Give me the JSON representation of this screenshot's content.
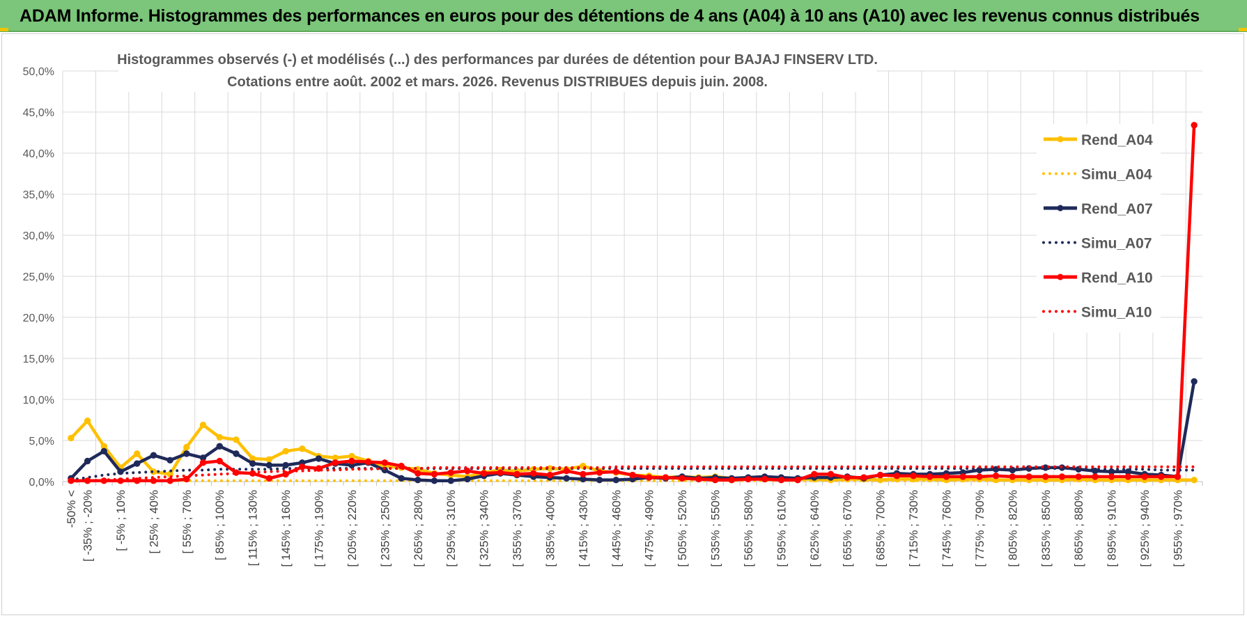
{
  "banner": {
    "title": "ADAM Informe. Histogrammes des performances en euros pour des détentions de 4 ans (A04) à 10 ans (A10) avec les revenus connus distribués",
    "color": "#7bc67a"
  },
  "chart_data": {
    "type": "line",
    "title": "Histogrammes observés (-) et modélisés (...) des performances par durées de détention pour BAJAJ FINSERV  LTD.",
    "subtitle": "Cotations entre août. 2002 et mars. 2026. Revenus DISTRIBUES depuis juin. 2008.",
    "ylim": [
      0,
      50
    ],
    "yticks": [
      "0,0%",
      "5,0%",
      "10,0%",
      "15,0%",
      "20,0%",
      "25,0%",
      "30,0%",
      "35,0%",
      "40,0%",
      "45,0%",
      "50,0%"
    ],
    "grid": true,
    "legend_position": "right",
    "n_categories": 69,
    "x_tick_labels": [
      "-50% <",
      "[ -35% ; -20%",
      "[ -5% ; 10%",
      "[ 25% ; 40%",
      "[ 55% ; 70%",
      "[ 85% ; 100%",
      "[ 115% ; 130%",
      "[ 145% ; 160%",
      "[ 175% ; 190%",
      "[ 205% ; 220%",
      "[ 235% ; 250%",
      "[ 265% ; 280%",
      "[ 295% ; 310%",
      "[ 325% ; 340%",
      "[ 355% ; 370%",
      "[ 385% ; 400%",
      "[ 415% ; 430%",
      "[ 445% ; 460%",
      "[ 475% ; 490%",
      "[ 505% ; 520%",
      "[ 535% ; 550%",
      "[ 565% ; 580%",
      "[ 595% ; 610%",
      "[ 625% ; 640%",
      "[ 655% ; 670%",
      "[ 685% ; 700%",
      "[ 715% ; 730%",
      "[ 745% ; 760%",
      "[ 775% ; 790%",
      "[ 805% ; 820%",
      "[ 835% ; 850%",
      "[ 865% ; 880%",
      "[ 895% ; 910%",
      "[ 925% ; 940%",
      "[ 955% ; 970%"
    ],
    "series": [
      {
        "name": "Rend_A04",
        "style": "solid",
        "marker": true,
        "color": "#ffc000",
        "values": [
          5.3,
          7.4,
          4.3,
          1.7,
          3.4,
          1.2,
          0.9,
          4.2,
          6.9,
          5.4,
          5.1,
          2.8,
          2.7,
          3.7,
          4.0,
          3.1,
          2.9,
          3.1,
          2.5,
          1.9,
          1.7,
          1.5,
          1.0,
          0.8,
          0.6,
          1.1,
          1.4,
          1.3,
          1.5,
          1.6,
          1.5,
          1.9,
          1.3,
          1.1,
          0.8,
          0.7,
          0.5,
          0.6,
          0.5,
          0.6,
          0.4,
          0.4,
          0.5,
          0.3,
          0.3,
          0.3,
          0.2,
          0.3,
          0.3,
          0.2,
          0.3,
          0.3,
          0.3,
          0.2,
          0.3,
          0.3,
          0.2,
          0.2,
          0.2,
          0.2,
          0.2,
          0.3,
          0.2,
          0.2,
          0.2,
          0.2,
          0.2,
          0.2,
          0.2
        ]
      },
      {
        "name": "Simu_A04",
        "style": "dotted",
        "marker": false,
        "color": "#ffc000",
        "values": [
          0.1,
          0.1,
          0.1,
          0.1,
          0.1,
          0.1,
          0.1,
          0.1,
          0.1,
          0.1,
          0.1,
          0.1,
          0.1,
          0.1,
          0.1,
          0.1,
          0.1,
          0.1,
          0.1,
          0.1,
          0.1,
          0.1,
          0.1,
          0.1,
          0.1,
          0.1,
          0.1,
          0.1,
          0.1,
          0.1,
          0.1,
          0.1,
          0.1,
          0.1,
          0.1,
          0.1,
          0.1,
          0.1,
          0.1,
          0.1,
          0.1,
          0.1,
          0.1,
          0.1,
          0.1,
          0.1,
          0.1,
          0.1,
          0.1,
          0.1,
          0.1,
          0.1,
          0.1,
          0.1,
          0.1,
          0.1,
          0.1,
          0.1,
          0.1,
          0.1,
          0.1,
          0.1,
          0.1,
          0.1,
          0.1,
          0.1,
          0.1,
          0.1,
          0.1
        ]
      },
      {
        "name": "Rend_A07",
        "style": "solid",
        "marker": true,
        "color": "#1f2a5a",
        "values": [
          0.4,
          2.5,
          3.7,
          1.2,
          2.2,
          3.2,
          2.6,
          3.4,
          2.9,
          4.3,
          3.4,
          2.2,
          2.0,
          2.0,
          2.3,
          2.8,
          2.2,
          2.0,
          2.3,
          1.4,
          0.4,
          0.2,
          0.1,
          0.1,
          0.3,
          0.7,
          1.0,
          0.8,
          0.6,
          0.5,
          0.4,
          0.3,
          0.2,
          0.2,
          0.3,
          0.5,
          0.4,
          0.6,
          0.4,
          0.5,
          0.4,
          0.5,
          0.6,
          0.5,
          0.4,
          0.5,
          0.5,
          0.6,
          0.4,
          0.8,
          1.0,
          0.9,
          0.9,
          1.0,
          1.1,
          1.4,
          1.5,
          1.4,
          1.6,
          1.7,
          1.7,
          1.5,
          1.3,
          1.2,
          1.2,
          0.9,
          0.8,
          0.6,
          12.2
        ]
      },
      {
        "name": "Simu_A07",
        "style": "dotted",
        "marker": false,
        "color": "#1f2a5a",
        "values": [
          0.2,
          0.5,
          0.8,
          1.0,
          1.1,
          1.2,
          1.3,
          1.4,
          1.4,
          1.5,
          1.5,
          1.5,
          1.5,
          1.6,
          1.6,
          1.6,
          1.6,
          1.6,
          1.6,
          1.6,
          1.6,
          1.6,
          1.6,
          1.6,
          1.6,
          1.6,
          1.6,
          1.6,
          1.6,
          1.6,
          1.6,
          1.6,
          1.6,
          1.6,
          1.6,
          1.6,
          1.6,
          1.6,
          1.6,
          1.6,
          1.6,
          1.6,
          1.6,
          1.6,
          1.6,
          1.6,
          1.6,
          1.6,
          1.6,
          1.6,
          1.6,
          1.6,
          1.6,
          1.6,
          1.6,
          1.6,
          1.6,
          1.6,
          1.6,
          1.6,
          1.6,
          1.6,
          1.5,
          1.5,
          1.5,
          1.5,
          1.4,
          1.4,
          1.4
        ]
      },
      {
        "name": "Rend_A10",
        "style": "solid",
        "marker": true,
        "color": "#ff0000",
        "values": [
          0.1,
          0.1,
          0.1,
          0.1,
          0.1,
          0.1,
          0.1,
          0.3,
          2.3,
          2.5,
          1.1,
          1.0,
          0.4,
          0.9,
          1.8,
          1.6,
          2.3,
          2.5,
          2.4,
          2.3,
          1.9,
          1.0,
          0.9,
          1.1,
          1.3,
          1.0,
          1.1,
          0.9,
          1.0,
          0.8,
          1.3,
          0.9,
          1.1,
          1.2,
          0.8,
          0.5,
          0.5,
          0.4,
          0.3,
          0.2,
          0.2,
          0.3,
          0.3,
          0.2,
          0.2,
          0.9,
          0.9,
          0.5,
          0.5,
          0.8,
          0.7,
          0.7,
          0.6,
          0.6,
          0.6,
          0.6,
          0.7,
          0.6,
          0.6,
          0.6,
          0.6,
          0.6,
          0.6,
          0.6,
          0.6,
          0.6,
          0.6,
          0.6,
          43.4
        ]
      },
      {
        "name": "Simu_A10",
        "style": "dotted",
        "marker": false,
        "color": "#ff0000",
        "values": [
          0.0,
          0.1,
          0.2,
          0.3,
          0.4,
          0.5,
          0.6,
          0.7,
          0.8,
          0.9,
          1.0,
          1.1,
          1.2,
          1.3,
          1.3,
          1.4,
          1.4,
          1.5,
          1.5,
          1.6,
          1.6,
          1.6,
          1.7,
          1.7,
          1.7,
          1.7,
          1.7,
          1.7,
          1.7,
          1.7,
          1.7,
          1.7,
          1.7,
          1.8,
          1.8,
          1.8,
          1.8,
          1.8,
          1.8,
          1.8,
          1.8,
          1.8,
          1.8,
          1.8,
          1.8,
          1.8,
          1.8,
          1.8,
          1.8,
          1.8,
          1.8,
          1.8,
          1.8,
          1.8,
          1.8,
          1.8,
          1.8,
          1.8,
          1.8,
          1.8,
          1.8,
          1.8,
          1.8,
          1.8,
          1.8,
          1.8,
          1.8,
          1.8,
          1.8
        ]
      }
    ]
  }
}
